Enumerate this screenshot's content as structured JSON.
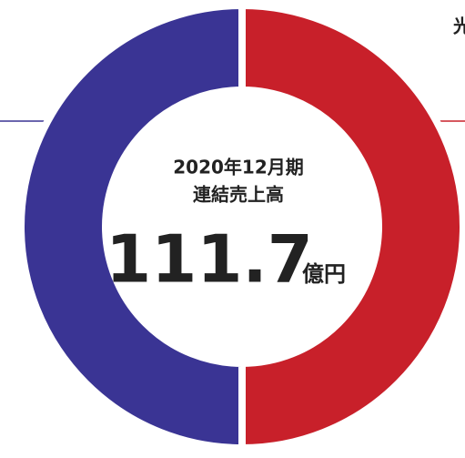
{
  "chart_data": {
    "type": "pie",
    "values": [
      50,
      50
    ],
    "colors": [
      "#c8202a",
      "#3a3494"
    ],
    "annotations": [
      "光",
      "2020年12月期",
      "連結売上高"
    ],
    "center_value": 111.7,
    "center_unit": "億円"
  }
}
